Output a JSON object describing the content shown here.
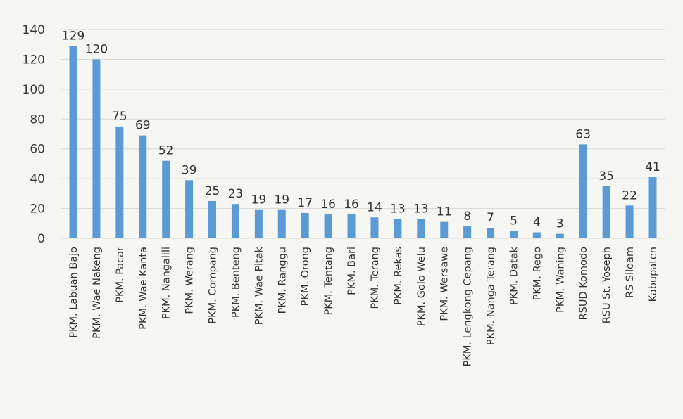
{
  "chart_data": {
    "type": "bar",
    "categories": [
      "PKM. Labuan Bajo",
      "PKM. Wae Nakeng",
      "PKM. Pacar",
      "PKM. Wae Kanta",
      "PKM. Nangalili",
      "PKM. Werang",
      "PKM. Compang",
      "PKM. Benteng",
      "PKM. Wae Pitak",
      "PKM. Ranggu",
      "PKM. Orong",
      "PKM. Tentang",
      "PKM. Bari",
      "PKM. Terang",
      "PKM. Rekas",
      "PKM. Golo Welu",
      "PKM. Wersawe",
      "PKM. Lengkong Cepang",
      "PKM. Nanga Terang",
      "PKM. Datak",
      "PKM. Rego",
      "PKM. Waning",
      "RSUD Komodo",
      "RSU St. Yoseph",
      "RS Siloam",
      "Kabupaten"
    ],
    "values": [
      129,
      120,
      75,
      69,
      52,
      39,
      25,
      23,
      19,
      19,
      17,
      16,
      16,
      14,
      13,
      13,
      11,
      8,
      7,
      5,
      4,
      3,
      63,
      35,
      22,
      41
    ],
    "data_labels": [
      "129",
      "120",
      "75",
      "69",
      "52",
      "39",
      "25",
      "23",
      "19",
      "19",
      "17",
      "16",
      "16",
      "14",
      "13",
      "13",
      "11",
      "8",
      "7",
      "5",
      "4",
      "3",
      "63",
      "35",
      "22",
      "41"
    ],
    "y_ticks": [
      "0",
      "20",
      "40",
      "60",
      "80",
      "100",
      "120",
      "140"
    ],
    "ylim": [
      0,
      140
    ],
    "grid": true,
    "legend": "none",
    "bar_color": "#5b9bd5",
    "grid_color": "#d9d9d4"
  }
}
